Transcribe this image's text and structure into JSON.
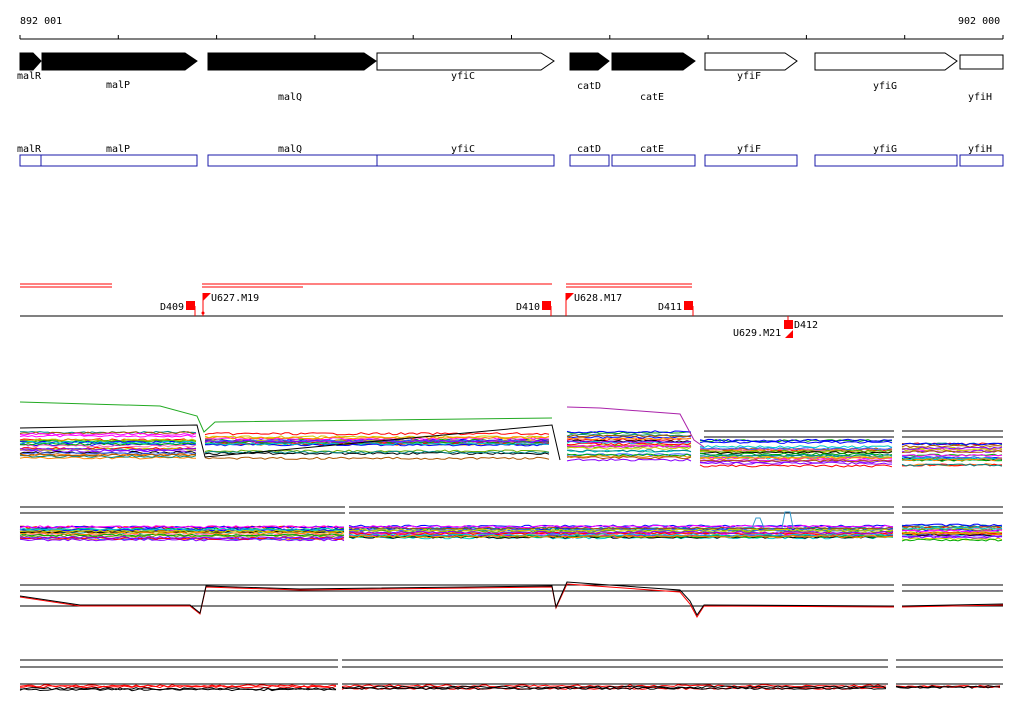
{
  "coordinates": {
    "start_label": "892 001",
    "end_label": "902 000"
  },
  "genes": [
    {
      "name": "malR",
      "strand": "forward",
      "filled": true
    },
    {
      "name": "malP",
      "strand": "forward",
      "filled": true
    },
    {
      "name": "malQ",
      "strand": "forward",
      "filled": true
    },
    {
      "name": "yfiC",
      "strand": "forward",
      "filled": false
    },
    {
      "name": "catD",
      "strand": "forward",
      "filled": true
    },
    {
      "name": "catE",
      "strand": "forward",
      "filled": true
    },
    {
      "name": "yfiF",
      "strand": "forward",
      "filled": false
    },
    {
      "name": "yfiG",
      "strand": "forward",
      "filled": false
    },
    {
      "name": "yfiH",
      "strand": "forward",
      "filled": false
    }
  ],
  "transcript_boxes": [
    "malR",
    "malP",
    "malQ",
    "yfiC",
    "catD",
    "catE",
    "yfiF",
    "yfiG",
    "yfiH"
  ],
  "markers": [
    {
      "label": "D409",
      "kind": "downshift"
    },
    {
      "label": "U627.M19",
      "kind": "upshift"
    },
    {
      "label": "D410",
      "kind": "downshift"
    },
    {
      "label": "U628.M17",
      "kind": "upshift"
    },
    {
      "label": "D411",
      "kind": "downshift"
    },
    {
      "label": "D412",
      "kind": "downshift"
    },
    {
      "label": "U629.M21",
      "kind": "upshift"
    }
  ],
  "colors": {
    "gene_fill": "#000000",
    "transcript_box": "#1a1aa8",
    "marker": "#ff0000",
    "axis": "#000000",
    "profile_palette": [
      "#ff0000",
      "#00aa00",
      "#0000ff",
      "#ff00ff",
      "#00cccc",
      "#cccc00",
      "#ff8800",
      "#8800ff",
      "#008888",
      "#aa5500",
      "#ff66aa",
      "#66aa00",
      "#000000",
      "#3366ff"
    ]
  }
}
